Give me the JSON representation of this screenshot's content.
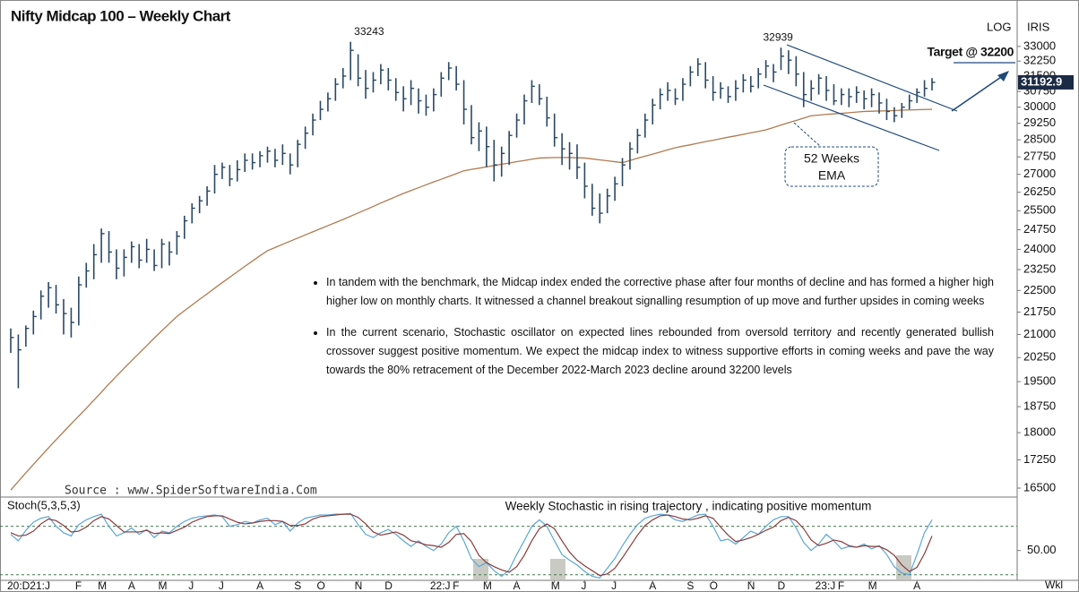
{
  "chart_data": {
    "type": "ohlc",
    "title": "Nifty Midcap 100 – Weekly  Chart",
    "log_label": "LOG",
    "iris_label": "IRIS",
    "scale": "log",
    "bar_color": "#2a4863",
    "categories": [
      "20:D",
      null,
      null,
      "21:J",
      null,
      null,
      null,
      null,
      null,
      "F",
      null,
      null,
      "M",
      null,
      null,
      null,
      "A",
      null,
      null,
      null,
      "M",
      null,
      null,
      null,
      "J",
      null,
      null,
      null,
      "J",
      null,
      null,
      null,
      null,
      "A",
      null,
      null,
      null,
      null,
      "S",
      null,
      null,
      "O",
      null,
      null,
      null,
      null,
      "N",
      null,
      null,
      null,
      "D",
      null,
      null,
      null,
      null,
      null,
      "22:J",
      null,
      null,
      "F",
      null,
      null,
      null,
      "M",
      null,
      null,
      null,
      "A",
      null,
      null,
      null,
      null,
      "M",
      null,
      null,
      null,
      "J",
      null,
      null,
      null,
      "J",
      null,
      null,
      null,
      null,
      "A",
      null,
      null,
      null,
      null,
      "S",
      null,
      null,
      "O",
      null,
      null,
      null,
      null,
      "N",
      null,
      null,
      null,
      "D",
      null,
      null,
      null,
      null,
      "23:J",
      null,
      null,
      "F",
      null,
      null,
      null,
      "M",
      null,
      null,
      null,
      null,
      null,
      "A",
      null,
      null
    ],
    "interval_label": "Wkl",
    "high": [
      21200,
      21000,
      21300,
      21800,
      22500,
      22800,
      22700,
      22200,
      21900,
      23000,
      23500,
      24200,
      24800,
      24700,
      24000,
      24000,
      24300,
      24200,
      24400,
      24000,
      24400,
      24300,
      24700,
      25300,
      25800,
      26100,
      26500,
      27400,
      27500,
      27400,
      27600,
      27900,
      27900,
      28000,
      28200,
      28100,
      28300,
      27900,
      28500,
      29100,
      29700,
      30300,
      30700,
      31400,
      31900,
      33243,
      32600,
      31800,
      31700,
      32100,
      31900,
      31400,
      31000,
      31300,
      30900,
      30600,
      30900,
      31700,
      32200,
      32000,
      31300,
      30100,
      29300,
      29100,
      28500,
      28200,
      28900,
      29700,
      30600,
      31300,
      31100,
      30500,
      29700,
      28800,
      28400,
      28300,
      27500,
      26600,
      26200,
      26400,
      26900,
      27700,
      28400,
      29000,
      29700,
      30400,
      30900,
      31200,
      30900,
      31400,
      32000,
      32400,
      32200,
      31500,
      31200,
      31000,
      31300,
      31600,
      31500,
      31900,
      32300,
      32100,
      32939,
      32800,
      32500,
      31700,
      31300,
      31600,
      31500,
      31100,
      30900,
      30900,
      31000,
      30800,
      30900,
      30700,
      30400,
      30000,
      30200,
      30600,
      30900,
      31300,
      31400
    ],
    "low": [
      20400,
      19300,
      20600,
      21000,
      21500,
      21900,
      21700,
      21000,
      20900,
      21300,
      22600,
      22900,
      23500,
      23500,
      22900,
      23000,
      23500,
      23300,
      23500,
      23200,
      23300,
      23400,
      23800,
      24400,
      25000,
      25400,
      25700,
      26200,
      26800,
      26500,
      26700,
      27100,
      27200,
      27300,
      27500,
      27300,
      27400,
      27000,
      27300,
      28100,
      28700,
      29400,
      29800,
      30300,
      30900,
      31300,
      31000,
      30400,
      30700,
      31100,
      30800,
      30300,
      29800,
      30100,
      29700,
      29600,
      29800,
      30500,
      31300,
      30800,
      29200,
      28300,
      28000,
      27300,
      26700,
      26900,
      27400,
      28600,
      29200,
      30200,
      30100,
      29100,
      28200,
      27400,
      27200,
      26800,
      26000,
      25300,
      25000,
      25400,
      25900,
      26500,
      27200,
      27900,
      28600,
      29200,
      29900,
      30300,
      30100,
      30300,
      31000,
      31500,
      30900,
      30300,
      30400,
      30200,
      30300,
      30700,
      30700,
      30900,
      31400,
      31200,
      31800,
      31600,
      31000,
      30000,
      30300,
      30600,
      30300,
      30100,
      30100,
      30000,
      30200,
      29900,
      30000,
      29700,
      29400,
      29300,
      29500,
      29900,
      30200,
      30500,
      30800
    ],
    "close": [
      20900,
      20500,
      21200,
      21600,
      22300,
      22600,
      22000,
      21700,
      21400,
      22700,
      23200,
      23800,
      24600,
      23900,
      23300,
      23700,
      24100,
      23600,
      24000,
      23400,
      24200,
      23900,
      24500,
      25100,
      25600,
      25900,
      26300,
      27000,
      27300,
      26800,
      27200,
      27600,
      27500,
      27800,
      28000,
      27600,
      27900,
      27400,
      28300,
      28800,
      29400,
      29900,
      30400,
      31100,
      31500,
      32800,
      31400,
      30900,
      31300,
      31800,
      31300,
      30700,
      30400,
      30900,
      30300,
      30000,
      30600,
      31400,
      31900,
      31100,
      29900,
      28600,
      28900,
      28200,
      27400,
      27900,
      28700,
      29400,
      30300,
      31000,
      30400,
      29500,
      28600,
      28100,
      27900,
      27300,
      26500,
      25600,
      25400,
      26100,
      26600,
      27400,
      28100,
      28700,
      29400,
      30100,
      30600,
      30800,
      30400,
      31100,
      31700,
      32100,
      31300,
      30700,
      30900,
      30500,
      30900,
      31300,
      31000,
      31600,
      32000,
      31700,
      32500,
      32300,
      31600,
      30600,
      30900,
      31400,
      30800,
      30300,
      30600,
      30500,
      30700,
      30400,
      30600,
      30200,
      29800,
      29600,
      30000,
      30300,
      30700,
      30900,
      31192.9
    ],
    "ema": {
      "label": [
        "52 Weeks",
        "EMA"
      ],
      "color": "#b07a4f",
      "values": [
        16450,
        16675,
        16900,
        17125,
        17350,
        17575,
        17800,
        18025,
        18250,
        18475,
        18700,
        18940,
        19180,
        19430,
        19670,
        19910,
        20150,
        20390,
        20630,
        20880,
        21120,
        21360,
        21600,
        21800,
        21990,
        22190,
        22380,
        22580,
        22780,
        22970,
        23170,
        23370,
        23560,
        23760,
        23950,
        24070,
        24190,
        24310,
        24430,
        24550,
        24670,
        24790,
        24910,
        25030,
        25150,
        25280,
        25410,
        25540,
        25670,
        25810,
        25940,
        26070,
        26200,
        26320,
        26440,
        26560,
        26680,
        26790,
        26910,
        27030,
        27150,
        27210,
        27260,
        27320,
        27370,
        27430,
        27480,
        27540,
        27590,
        27650,
        27700,
        27710,
        27720,
        27720,
        27720,
        27710,
        27700,
        27660,
        27620,
        27580,
        27540,
        27500,
        27590,
        27690,
        27780,
        27870,
        27960,
        28060,
        28150,
        28220,
        28280,
        28350,
        28420,
        28480,
        28550,
        28620,
        28680,
        28750,
        28820,
        28880,
        28950,
        29060,
        29170,
        29280,
        29380,
        29490,
        29600,
        29630,
        29660,
        29690,
        29710,
        29740,
        29770,
        29800,
        29810,
        29820,
        29830,
        29840,
        29860,
        29870,
        29880,
        29890,
        29900
      ]
    },
    "ylim": [
      16270,
      35000
    ],
    "yticks": [
      16500,
      17250,
      18000,
      18750,
      19500,
      20250,
      21000,
      21750,
      22500,
      23250,
      24000,
      24750,
      25500,
      26250,
      27000,
      27750,
      28500,
      29250,
      30000,
      30750,
      31500,
      32250,
      33000
    ],
    "target_label": "Target @ 32200",
    "target_color": "#e0701e",
    "source": "Source : www.SpiderSoftwareIndia.Com",
    "notes": [
      "In tandem with the benchmark, the Midcap index ended the corrective phase after four months of decline and has formed a higher high higher low on monthly charts. It witnessed a channel breakout signalling resumption of up move  and further upsides in coming weeks",
      "In the current scenario, Stochastic oscillator on expected lines rebounded from oversold territory and recently generated bullish crossover suggest positive momentum. We expect the midcap index to witness supportive efforts in coming weeks and pave the way towards the 80% retracement of the December 2022-March 2023 decline around 32200 levels"
    ],
    "stochastic": {
      "label": "Stoch(5,3,5,3)",
      "title": "Weekly  Stochastic in rising trajectory , indicating positive momentum",
      "k_color": "#5aa6d6",
      "d_color": "#8a3b3b",
      "k": [
        70,
        62,
        75,
        85,
        90,
        92,
        80,
        72,
        68,
        82,
        88,
        92,
        95,
        80,
        68,
        72,
        78,
        70,
        76,
        66,
        74,
        72,
        80,
        86,
        90,
        92,
        93,
        94,
        92,
        80,
        82,
        86,
        84,
        88,
        90,
        82,
        86,
        74,
        84,
        90,
        92,
        94,
        94,
        95,
        95,
        96,
        82,
        70,
        66,
        72,
        76,
        70,
        62,
        55,
        62,
        55,
        50,
        58,
        72,
        80,
        62,
        40,
        30,
        35,
        25,
        18,
        26,
        45,
        62,
        80,
        88,
        80,
        62,
        45,
        38,
        32,
        24,
        18,
        16,
        28,
        40,
        56,
        70,
        82,
        90,
        93,
        95,
        94,
        88,
        86,
        90,
        94,
        95,
        80,
        62,
        64,
        58,
        66,
        74,
        70,
        80,
        88,
        92,
        92,
        78,
        60,
        50,
        58,
        70,
        62,
        52,
        55,
        54,
        58,
        52,
        56,
        45,
        30,
        22,
        20,
        45,
        72,
        88
      ],
      "d": [
        72,
        68,
        69,
        74,
        83,
        89,
        87,
        81,
        73,
        74,
        79,
        87,
        92,
        89,
        81,
        73,
        73,
        73,
        75,
        71,
        72,
        71,
        75,
        79,
        85,
        89,
        92,
        93,
        93,
        89,
        85,
        83,
        84,
        86,
        87,
        87,
        86,
        81,
        81,
        83,
        89,
        92,
        93,
        94,
        95,
        95,
        91,
        83,
        73,
        69,
        71,
        73,
        69,
        62,
        60,
        57,
        56,
        54,
        60,
        70,
        71,
        61,
        44,
        35,
        30,
        26,
        23,
        30,
        44,
        62,
        77,
        83,
        77,
        62,
        48,
        38,
        31,
        25,
        19,
        21,
        28,
        41,
        55,
        69,
        81,
        88,
        93,
        94,
        92,
        89,
        88,
        90,
        93,
        90,
        79,
        69,
        61,
        63,
        66,
        70,
        75,
        79,
        87,
        91,
        87,
        77,
        63,
        56,
        59,
        63,
        61,
        56,
        54,
        56,
        55,
        55,
        51,
        44,
        32,
        24,
        29,
        46,
        68
      ],
      "ylim": [
        13,
        114
      ],
      "yticks": [
        {
          "value": 50,
          "label": "50.00"
        }
      ],
      "levels": [
        80,
        20
      ]
    }
  }
}
